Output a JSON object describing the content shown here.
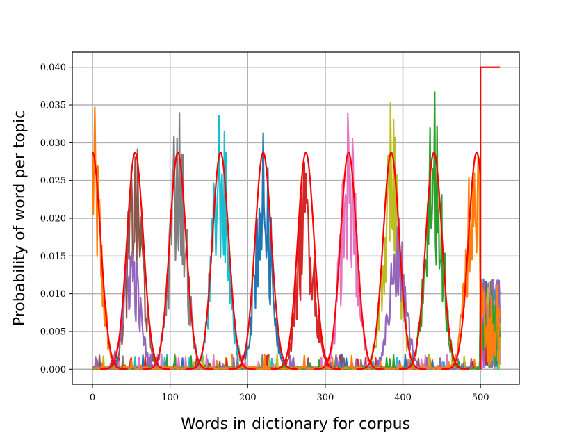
{
  "chart_data": {
    "type": "line",
    "title": "",
    "xlabel": "Words in dictionary for corpus",
    "ylabel": "Probability of word per topic",
    "xlim": [
      -26,
      550
    ],
    "ylim": [
      -0.002,
      0.042
    ],
    "xticks": [
      0,
      100,
      200,
      300,
      400,
      500
    ],
    "xtick_labels": [
      "0",
      "100",
      "200",
      "300",
      "400",
      "500"
    ],
    "yticks": [
      0.0,
      0.005,
      0.01,
      0.015,
      0.02,
      0.025,
      0.03,
      0.035,
      0.04
    ],
    "ytick_labels": [
      "0.000",
      "0.005",
      "0.010",
      "0.015",
      "0.020",
      "0.025",
      "0.030",
      "0.035",
      "0.040"
    ],
    "grid": true,
    "legend": "none",
    "true_topics": {
      "color": "#ff0000",
      "peak": 0.0287,
      "centers": [
        0,
        55,
        110,
        165,
        220,
        275,
        330,
        385,
        440,
        495
      ],
      "width": 22,
      "final_segment": {
        "x": [
          500,
          525
        ],
        "y": [
          0.04,
          0.04
        ]
      }
    },
    "estimated_topics": [
      {
        "color": "#ff7f0e",
        "center": 0,
        "amplitude": 0.025
      },
      {
        "color": "#8c564b",
        "center": 55,
        "amplitude": 0.021
      },
      {
        "color": "#9467bd",
        "center": 50,
        "amplitude": 0.013
      },
      {
        "color": "#7f7f7f",
        "center": 110,
        "amplitude": 0.026
      },
      {
        "color": "#17becf",
        "center": 165,
        "amplitude": 0.025
      },
      {
        "color": "#1f77b4",
        "center": 220,
        "amplitude": 0.022
      },
      {
        "color": "#d62728",
        "center": 275,
        "amplitude": 0.02
      },
      {
        "color": "#e377c2",
        "center": 330,
        "amplitude": 0.024
      },
      {
        "color": "#bcbd22",
        "center": 385,
        "amplitude": 0.025
      },
      {
        "color": "#9467bd",
        "center": 393,
        "amplitude": 0.014
      },
      {
        "color": "#2ca02c",
        "center": 440,
        "amplitude": 0.026
      },
      {
        "color": "#ff7f0e",
        "center": 493,
        "amplitude": 0.026
      }
    ]
  }
}
